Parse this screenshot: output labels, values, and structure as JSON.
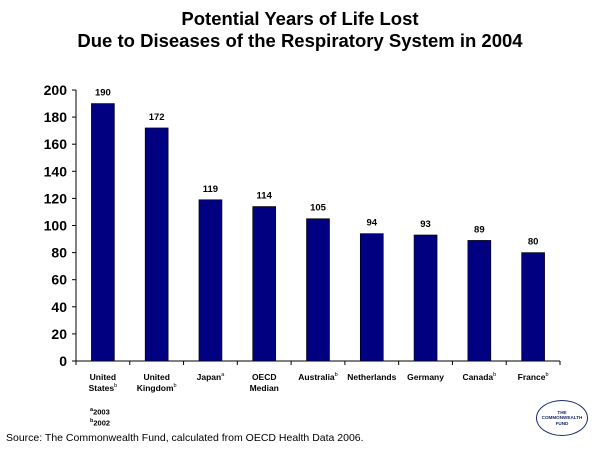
{
  "title_lines": [
    "Potential Years of Life Lost",
    "Due to Diseases of the Respiratory System in 2004"
  ],
  "chart_data": {
    "type": "bar",
    "categories": [
      {
        "lines": [
          "United",
          "States"
        ],
        "sup": "b"
      },
      {
        "lines": [
          "United",
          "Kingdom"
        ],
        "sup": "b"
      },
      {
        "lines": [
          "Japan"
        ],
        "sup": "a"
      },
      {
        "lines": [
          "OECD",
          "Median"
        ],
        "sup": ""
      },
      {
        "lines": [
          "Australia"
        ],
        "sup": "b"
      },
      {
        "lines": [
          "Netherlands"
        ],
        "sup": ""
      },
      {
        "lines": [
          "Germany"
        ],
        "sup": ""
      },
      {
        "lines": [
          "Canada"
        ],
        "sup": "b"
      },
      {
        "lines": [
          "France"
        ],
        "sup": "b"
      }
    ],
    "values": [
      190,
      172,
      119,
      114,
      105,
      94,
      93,
      89,
      80
    ],
    "ylim": [
      0,
      200
    ],
    "yticks": [
      0,
      20,
      40,
      60,
      80,
      100,
      120,
      140,
      160,
      180,
      200
    ],
    "bar_color": "#000080",
    "grid": false,
    "legend": "none"
  },
  "notes": [
    {
      "sup": "a",
      "text": "2003"
    },
    {
      "sup": "b",
      "text": "2002"
    }
  ],
  "source": "Source: The Commonwealth Fund, calculated from OECD Health Data 2006.",
  "logo_lines": [
    "THE",
    "COMMONWEALTH",
    "FUND"
  ]
}
